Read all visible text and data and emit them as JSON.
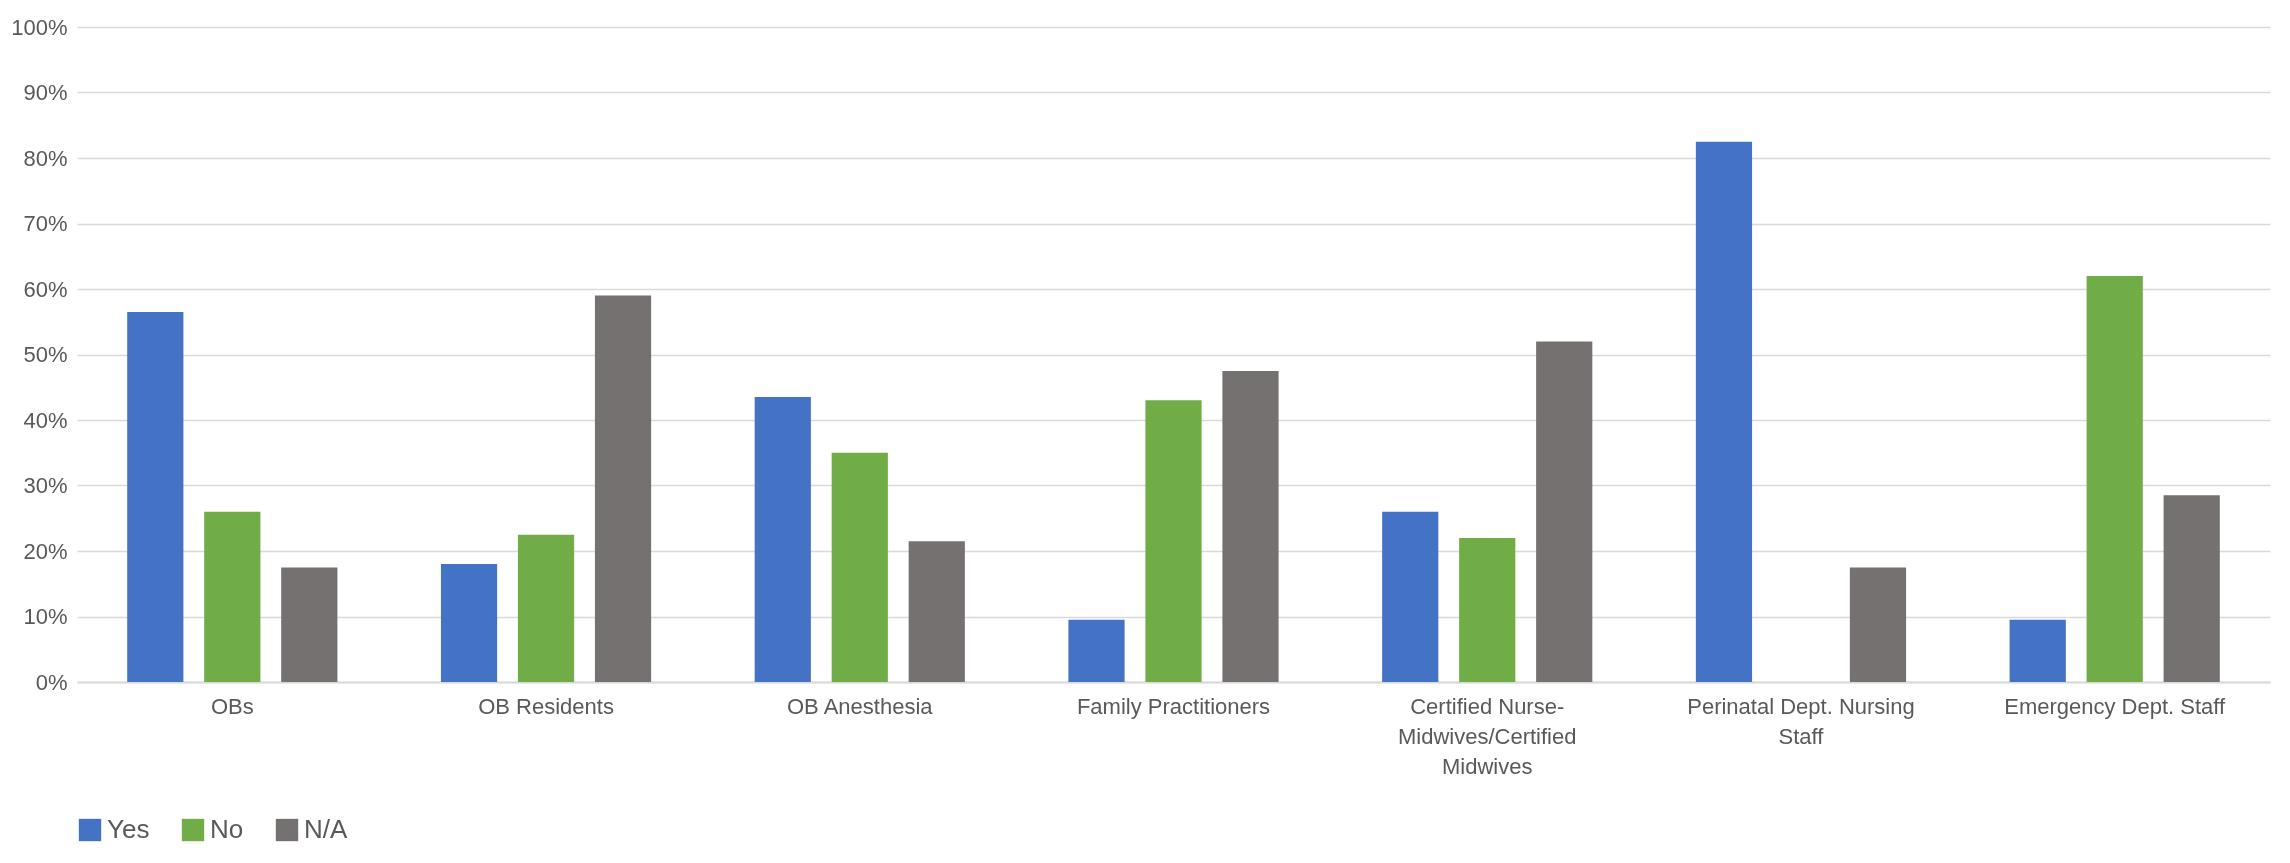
{
  "chart_data": {
    "type": "bar",
    "categories": [
      "OBs",
      "OB Residents",
      "OB Anesthesia",
      "Family Practitioners",
      "Certified Nurse-Midwives/Certified Midwives",
      "Perinatal Dept. Nursing Staff",
      "Emergency Dept. Staff"
    ],
    "series": [
      {
        "name": "Yes",
        "color": "#4472c4",
        "values": [
          56.5,
          18,
          43.5,
          9.5,
          26,
          82.5,
          9.5
        ]
      },
      {
        "name": "No",
        "color": "#70ad47",
        "values": [
          26,
          22.5,
          35,
          43,
          22,
          0,
          62
        ]
      },
      {
        "name": "N/A",
        "color": "#767171",
        "values": [
          17.5,
          59,
          21.5,
          47.5,
          52,
          17.5,
          28.5
        ]
      }
    ],
    "ylim": [
      0,
      100
    ],
    "yticks": [
      {
        "value": 0,
        "label": "0%"
      },
      {
        "value": 10,
        "label": "10%"
      },
      {
        "value": 20,
        "label": "20%"
      },
      {
        "value": 30,
        "label": "30%"
      },
      {
        "value": 40,
        "label": "40%"
      },
      {
        "value": 50,
        "label": "50%"
      },
      {
        "value": 60,
        "label": "60%"
      },
      {
        "value": 70,
        "label": "70%"
      },
      {
        "value": 80,
        "label": "80%"
      },
      {
        "value": 90,
        "label": "90%"
      },
      {
        "value": 100,
        "label": "100%"
      }
    ],
    "grid": "y",
    "legend": "bottom"
  }
}
